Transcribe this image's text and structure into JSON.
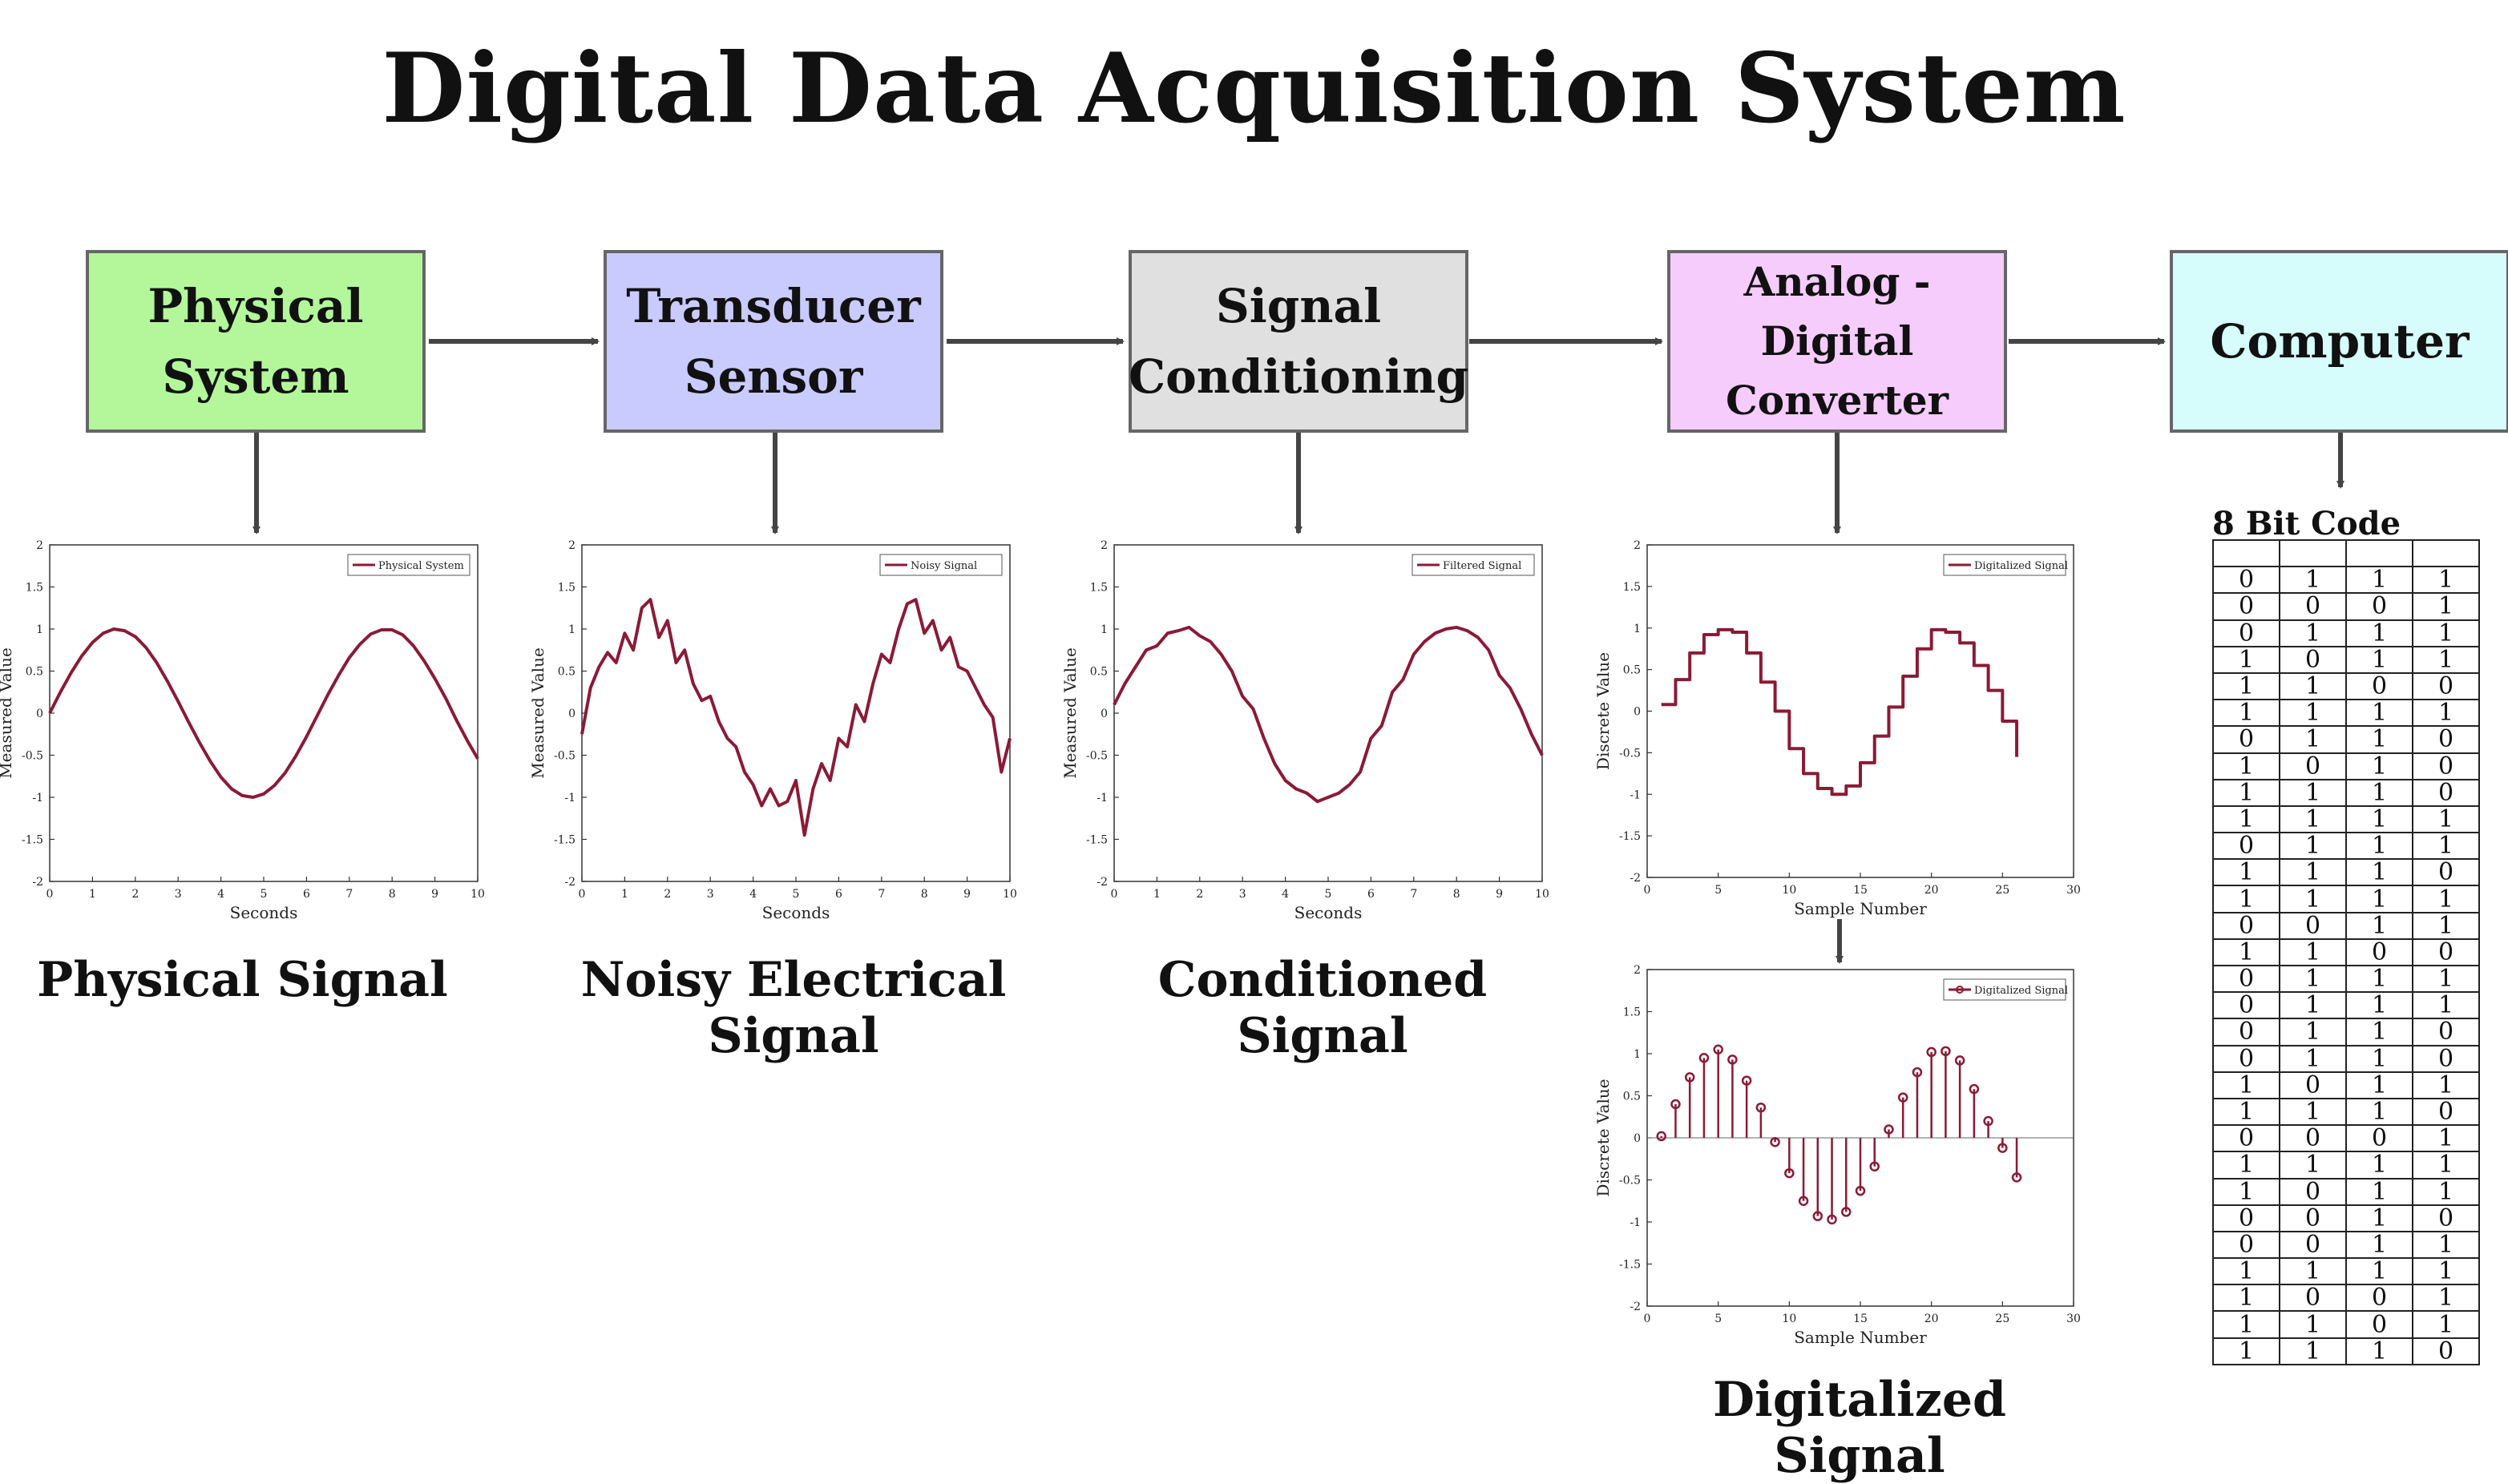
{
  "title": "Digital Data Acquisition System",
  "colors": {
    "curve": "#8b1a35",
    "box_border": "#666666",
    "arrow": "#444444"
  },
  "boxes": [
    {
      "label": "Physical\nSystem",
      "color": "#b3f79a"
    },
    {
      "label": "Transducer\nSensor",
      "color": "#c9cbff"
    },
    {
      "label": "Signal\nConditioning",
      "color": "#e0e0e0"
    },
    {
      "label": "Analog - Digital\nConverter",
      "color": "#f5ccfb"
    },
    {
      "label": "Computer",
      "color": "#d6fdfb"
    }
  ],
  "captions": {
    "physical": "Physical Signal",
    "noisy": "Noisy Electrical Signal",
    "conditioned": "Conditioned Signal",
    "digitalized": "Digitalized Signal"
  },
  "chart_data": [
    {
      "type": "line",
      "legend": "Physical System",
      "xlabel": "Seconds",
      "ylabel": "Measured Value",
      "xlim": [
        0,
        10
      ],
      "ylim": [
        -2,
        2
      ],
      "xticks": [
        "0",
        "1",
        "2",
        "3",
        "4",
        "5",
        "6",
        "7",
        "8",
        "9",
        "10"
      ],
      "yticks": [
        "-2",
        "-1.5",
        "-1",
        "-0.5",
        "0",
        "0.5",
        "1",
        "1.5",
        "2"
      ],
      "x": [
        0,
        0.25,
        0.5,
        0.75,
        1,
        1.25,
        1.5,
        1.75,
        2,
        2.25,
        2.5,
        2.75,
        3,
        3.25,
        3.5,
        3.75,
        4,
        4.25,
        4.5,
        4.75,
        5,
        5.25,
        5.5,
        5.75,
        6,
        6.25,
        6.5,
        6.75,
        7,
        7.25,
        7.5,
        7.75,
        8,
        8.25,
        8.5,
        8.75,
        9,
        9.25,
        9.5,
        9.75,
        10
      ],
      "y": [
        0,
        0.25,
        0.48,
        0.68,
        0.84,
        0.95,
        1.0,
        0.98,
        0.91,
        0.78,
        0.6,
        0.38,
        0.14,
        -0.11,
        -0.35,
        -0.57,
        -0.76,
        -0.9,
        -0.98,
        -1.0,
        -0.96,
        -0.86,
        -0.71,
        -0.51,
        -0.28,
        -0.03,
        0.22,
        0.45,
        0.66,
        0.82,
        0.94,
        0.99,
        0.99,
        0.93,
        0.8,
        0.62,
        0.41,
        0.18,
        -0.08,
        -0.32,
        -0.54
      ]
    },
    {
      "type": "line",
      "legend": "Noisy Signal",
      "xlabel": "Seconds",
      "ylabel": "Measured Value",
      "xlim": [
        0,
        10
      ],
      "ylim": [
        -2,
        2
      ],
      "xticks": [
        "0",
        "1",
        "2",
        "3",
        "4",
        "5",
        "6",
        "7",
        "8",
        "9",
        "10"
      ],
      "yticks": [
        "-2",
        "-1.5",
        "-1",
        "-0.5",
        "0",
        "0.5",
        "1",
        "1.5",
        "2"
      ],
      "x": [
        0,
        0.2,
        0.4,
        0.6,
        0.8,
        1,
        1.2,
        1.4,
        1.6,
        1.8,
        2,
        2.2,
        2.4,
        2.6,
        2.8,
        3,
        3.2,
        3.4,
        3.6,
        3.8,
        4,
        4.2,
        4.4,
        4.6,
        4.8,
        5,
        5.2,
        5.4,
        5.6,
        5.8,
        6,
        6.2,
        6.4,
        6.6,
        6.8,
        7,
        7.2,
        7.4,
        7.6,
        7.8,
        8,
        8.2,
        8.4,
        8.6,
        8.8,
        9,
        9.2,
        9.4,
        9.6,
        9.8,
        10
      ],
      "y": [
        -0.25,
        0.3,
        0.55,
        0.72,
        0.6,
        0.95,
        0.75,
        1.25,
        1.35,
        0.9,
        1.1,
        0.6,
        0.75,
        0.35,
        0.15,
        0.2,
        -0.1,
        -0.3,
        -0.4,
        -0.7,
        -0.85,
        -1.1,
        -0.9,
        -1.1,
        -1.05,
        -0.8,
        -1.45,
        -0.9,
        -0.6,
        -0.8,
        -0.3,
        -0.4,
        0.1,
        -0.1,
        0.35,
        0.7,
        0.6,
        1.0,
        1.3,
        1.35,
        0.95,
        1.1,
        0.75,
        0.9,
        0.55,
        0.5,
        0.3,
        0.1,
        -0.05,
        -0.7,
        -0.3
      ]
    },
    {
      "type": "line",
      "legend": "Filtered Signal",
      "xlabel": "Seconds",
      "ylabel": "Measured Value",
      "xlim": [
        0,
        10
      ],
      "ylim": [
        -2,
        2
      ],
      "xticks": [
        "0",
        "1",
        "2",
        "3",
        "4",
        "5",
        "6",
        "7",
        "8",
        "9",
        "10"
      ],
      "yticks": [
        "-2",
        "-1.5",
        "-1",
        "-0.5",
        "0",
        "0.5",
        "1",
        "1.5",
        "2"
      ],
      "x": [
        0,
        0.25,
        0.5,
        0.75,
        1,
        1.25,
        1.5,
        1.75,
        2,
        2.25,
        2.5,
        2.75,
        3,
        3.25,
        3.5,
        3.75,
        4,
        4.25,
        4.5,
        4.75,
        5,
        5.25,
        5.5,
        5.75,
        6,
        6.25,
        6.5,
        6.75,
        7,
        7.25,
        7.5,
        7.75,
        8,
        8.25,
        8.5,
        8.75,
        9,
        9.25,
        9.5,
        9.75,
        10
      ],
      "y": [
        0.1,
        0.35,
        0.55,
        0.75,
        0.8,
        0.95,
        0.98,
        1.02,
        0.92,
        0.85,
        0.7,
        0.5,
        0.2,
        0.05,
        -0.3,
        -0.6,
        -0.8,
        -0.9,
        -0.95,
        -1.05,
        -1.0,
        -0.95,
        -0.85,
        -0.7,
        -0.3,
        -0.15,
        0.25,
        0.4,
        0.7,
        0.85,
        0.95,
        1.0,
        1.02,
        0.98,
        0.9,
        0.75,
        0.45,
        0.3,
        0.05,
        -0.25,
        -0.5
      ]
    },
    {
      "type": "line",
      "step": true,
      "legend": "Digitalized Signal",
      "xlabel": "Sample Number",
      "ylabel": "Discrete Value",
      "xlim": [
        0,
        30
      ],
      "ylim": [
        -2,
        2
      ],
      "xticks": [
        "0",
        "5",
        "10",
        "15",
        "20",
        "25",
        "30"
      ],
      "yticks": [
        "-2",
        "-1.5",
        "-1",
        "-0.5",
        "0",
        "0.5",
        "1",
        "1.5",
        "2"
      ],
      "x": [
        1,
        2,
        3,
        4,
        5,
        6,
        7,
        8,
        9,
        10,
        11,
        12,
        13,
        14,
        15,
        16,
        17,
        18,
        19,
        20,
        21,
        22,
        23,
        24,
        25,
        26
      ],
      "y": [
        0.08,
        0.38,
        0.7,
        0.92,
        0.98,
        0.95,
        0.7,
        0.35,
        0.0,
        -0.45,
        -0.75,
        -0.93,
        -1.0,
        -0.9,
        -0.62,
        -0.3,
        0.05,
        0.42,
        0.75,
        0.98,
        0.95,
        0.82,
        0.55,
        0.25,
        -0.12,
        -0.55
      ]
    },
    {
      "type": "scatter",
      "stem": true,
      "legend": "Digitalized Signal",
      "xlabel": "Sample Number",
      "ylabel": "Discrete Value",
      "xlim": [
        0,
        30
      ],
      "ylim": [
        -2,
        2
      ],
      "xticks": [
        "0",
        "5",
        "10",
        "15",
        "20",
        "25",
        "30"
      ],
      "yticks": [
        "-2",
        "-1.5",
        "-1",
        "-0.5",
        "0",
        "0.5",
        "1",
        "1.5",
        "2"
      ],
      "x": [
        1,
        2,
        3,
        4,
        5,
        6,
        7,
        8,
        9,
        10,
        11,
        12,
        13,
        14,
        15,
        16,
        17,
        18,
        19,
        20,
        21,
        22,
        23,
        24,
        25,
        26
      ],
      "y": [
        0.02,
        0.4,
        0.72,
        0.95,
        1.05,
        0.93,
        0.68,
        0.36,
        -0.05,
        -0.42,
        -0.75,
        -0.93,
        -0.97,
        -0.88,
        -0.63,
        -0.34,
        0.1,
        0.48,
        0.78,
        1.02,
        1.03,
        0.92,
        0.58,
        0.2,
        -0.12,
        -0.47
      ]
    }
  ],
  "code_table": {
    "title": "8 Bit Code",
    "header": [
      "",
      "",
      "",
      ""
    ],
    "rows": [
      [
        "0",
        "1",
        "1",
        "1"
      ],
      [
        "0",
        "0",
        "0",
        "1"
      ],
      [
        "0",
        "1",
        "1",
        "1"
      ],
      [
        "1",
        "0",
        "1",
        "1"
      ],
      [
        "1",
        "1",
        "0",
        "0"
      ],
      [
        "1",
        "1",
        "1",
        "1"
      ],
      [
        "0",
        "1",
        "1",
        "0"
      ],
      [
        "1",
        "0",
        "1",
        "0"
      ],
      [
        "1",
        "1",
        "1",
        "0"
      ],
      [
        "1",
        "1",
        "1",
        "1"
      ],
      [
        "0",
        "1",
        "1",
        "1"
      ],
      [
        "1",
        "1",
        "1",
        "0"
      ],
      [
        "1",
        "1",
        "1",
        "1"
      ],
      [
        "0",
        "0",
        "1",
        "1"
      ],
      [
        "1",
        "1",
        "0",
        "0"
      ],
      [
        "0",
        "1",
        "1",
        "1"
      ],
      [
        "0",
        "1",
        "1",
        "1"
      ],
      [
        "0",
        "1",
        "1",
        "0"
      ],
      [
        "0",
        "1",
        "1",
        "0"
      ],
      [
        "1",
        "0",
        "1",
        "1"
      ],
      [
        "1",
        "1",
        "1",
        "0"
      ],
      [
        "0",
        "0",
        "0",
        "1"
      ],
      [
        "1",
        "1",
        "1",
        "1"
      ],
      [
        "1",
        "0",
        "1",
        "1"
      ],
      [
        "0",
        "0",
        "1",
        "0"
      ],
      [
        "0",
        "0",
        "1",
        "1"
      ],
      [
        "1",
        "1",
        "1",
        "1"
      ],
      [
        "1",
        "0",
        "0",
        "1"
      ],
      [
        "1",
        "1",
        "0",
        "1"
      ],
      [
        "1",
        "1",
        "1",
        "0"
      ]
    ]
  }
}
